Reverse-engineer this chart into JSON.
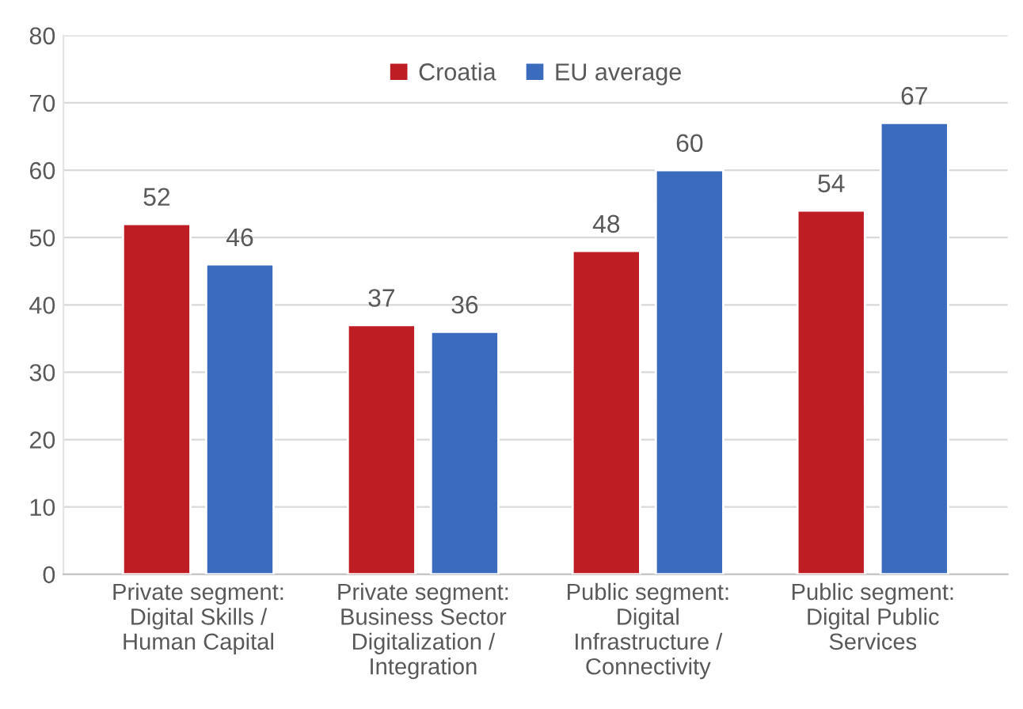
{
  "chart_data": {
    "type": "bar",
    "categories": [
      "Private segment: Digital Skills / Human Capital",
      "Private segment: Business Sector Digitalization / Integration",
      "Public segment: Digital Infrastructure / Connectivity",
      "Public segment: Digital Public Services"
    ],
    "series": [
      {
        "name": "Croatia",
        "color": "#be1e23",
        "values": [
          52,
          37,
          48,
          54
        ]
      },
      {
        "name": "EU average",
        "color": "#3a6bbd",
        "values": [
          46,
          36,
          60,
          67
        ]
      }
    ],
    "ylim": [
      0,
      80
    ],
    "yticks": [
      0,
      10,
      20,
      30,
      40,
      50,
      60,
      70,
      80
    ],
    "grid": "y",
    "legend": "top",
    "data_labels": true
  }
}
